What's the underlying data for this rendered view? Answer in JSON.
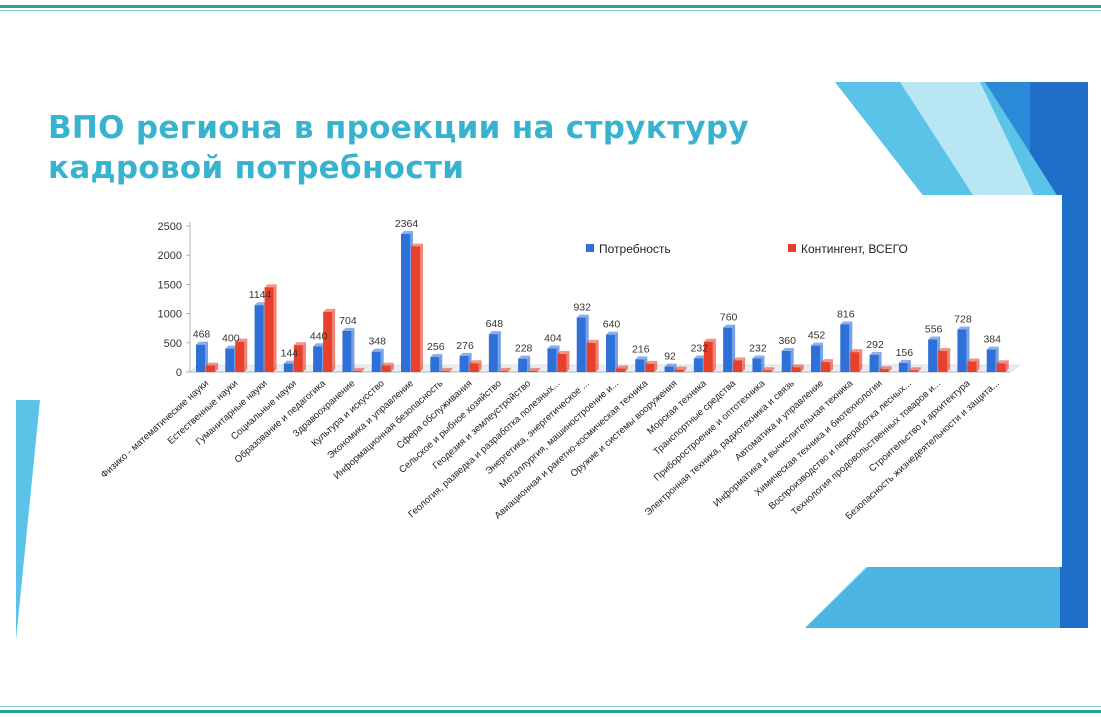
{
  "slide": {
    "title_line1": "ВПО региона в проекции на структуру",
    "title_line2": "кадровой потребности"
  },
  "colors": {
    "accent": "#38b3cf",
    "series_need": "#2e6fd8",
    "series_contingent": "#e8402a",
    "rule": "#2aa198"
  },
  "chart_data": {
    "type": "bar",
    "ylim": [
      0,
      2500
    ],
    "yticks": [
      0,
      500,
      1000,
      1500,
      2000,
      2500
    ],
    "grid": false,
    "legend_position": "top-right",
    "categories": [
      "Физико - математические науки",
      "Естественные науки",
      "Гуманитарные науки",
      "Социальные науки",
      "Образование и педагогика",
      "Здравоохранение",
      "Культура и искусство",
      "Экономика и управление",
      "Информационная безопасность",
      "Сфера обслуживания",
      "Сельское и рыбное хозяйство",
      "Геодезия и землеустройство",
      "Геология, разведка и разработка полезных...",
      "Энергетика, энергетическое ...",
      "Металлургия, машиностроение и...",
      "Авиационная и ракетно-космическая техника",
      "Оружие и системы вооружения",
      "Морская техника",
      "Транспортные средства",
      "Приборостроение и оптотехника",
      "Электронная техника, радиотехника и связь",
      "Автоматика и управление",
      "Информатика и вычислительная техника",
      "Химическая техника и биотехнологии",
      "Воспроизводство и переработка лесных...",
      "Технология продовольственных товаров и...",
      "Строительство и архитектура",
      "Безопасность жизнедеятельности и защита..."
    ],
    "series": [
      {
        "name": "Потребность",
        "values": [
          468,
          400,
          1144,
          144,
          440,
          704,
          348,
          2364,
          256,
          276,
          648,
          228,
          404,
          932,
          640,
          216,
          92,
          232,
          760,
          232,
          360,
          452,
          816,
          292,
          156,
          556,
          728,
          384
        ]
      },
      {
        "name": "Контингент, ВСЕГО",
        "values": [
          110,
          520,
          1450,
          460,
          1030,
          20,
          110,
          2150,
          20,
          150,
          20,
          20,
          310,
          500,
          60,
          140,
          40,
          520,
          200,
          30,
          80,
          170,
          340,
          50,
          30,
          360,
          180,
          150
        ]
      }
    ],
    "data_labels": [
      "468",
      "400",
      "1144",
      "144",
      "440",
      "704",
      "348",
      "2364",
      "256",
      "276",
      "648",
      "228",
      "404",
      "932",
      "640",
      "216",
      "92",
      "232",
      "760",
      "232",
      "360",
      "452",
      "816",
      "292",
      "156",
      "556",
      "728",
      "384"
    ]
  }
}
